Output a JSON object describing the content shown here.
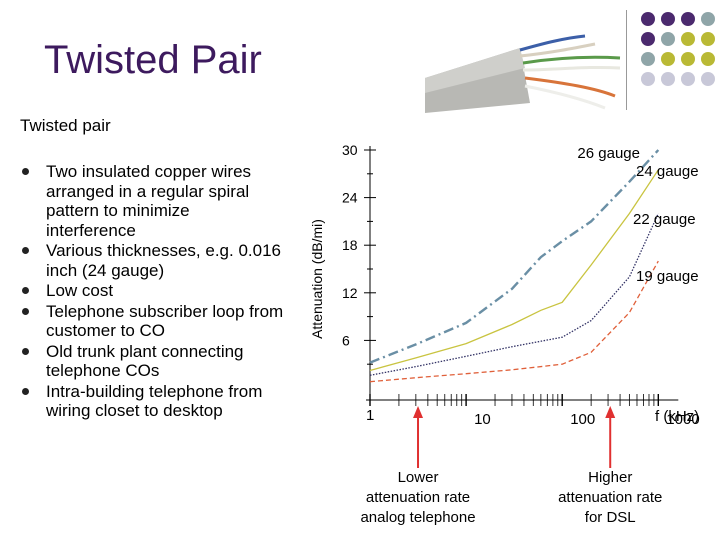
{
  "slide": {
    "title": "Twisted Pair",
    "subtitle": "Twisted pair",
    "bullets": [
      "Two insulated copper wires arranged in a regular spiral pattern to minimize interference",
      "Various thicknesses, e.g. 0.016 inch (24 gauge)",
      "Low cost",
      "Telephone subscriber loop from customer to CO",
      "Old trunk plant connecting telephone COs",
      "Intra-building telephone from wiring closet to desktop"
    ]
  },
  "decor": {
    "dot_colors": [
      "#4b2a6e",
      "#4b2a6e",
      "#4b2a6e",
      "#8fa5a8",
      "#4b2a6e",
      "#8fa5a8",
      "#b9b935",
      "#b9b935",
      "#8fa5a8",
      "#b9b935",
      "#b9b935",
      "#b9b935",
      "#c8c8d8",
      "#c8c8d8",
      "#c8c8d8",
      "#c8c8d8"
    ]
  },
  "chart_data": {
    "type": "line",
    "ylabel": "Attenuation (dB/mi)",
    "xlabel": "f (kHz)",
    "x_scale": "log",
    "xlim": [
      1,
      1000
    ],
    "ylim": [
      0,
      30
    ],
    "y_ticks": [
      "6",
      "12",
      "18",
      "24",
      "30"
    ],
    "x_ticks": [
      "1",
      "10",
      "100",
      "1000"
    ],
    "series": [
      {
        "name": "26 gauge",
        "color": "#6a8fa5",
        "dash": "dashdot",
        "points": [
          [
            1,
            3.2
          ],
          [
            3,
            5.5
          ],
          [
            10,
            8.2
          ],
          [
            30,
            12.5
          ],
          [
            60,
            16.5
          ],
          [
            100,
            18.5
          ],
          [
            200,
            21
          ],
          [
            500,
            26
          ],
          [
            1000,
            30
          ]
        ]
      },
      {
        "name": "24 gauge",
        "color": "#c9c440",
        "dash": "solid",
        "points": [
          [
            1,
            2.2
          ],
          [
            3,
            3.8
          ],
          [
            10,
            5.6
          ],
          [
            30,
            8
          ],
          [
            60,
            9.8
          ],
          [
            100,
            10.8
          ],
          [
            200,
            15.5
          ],
          [
            500,
            22
          ],
          [
            1000,
            27.5
          ]
        ]
      },
      {
        "name": "22 gauge",
        "color": "#333366",
        "dash": "dotted",
        "points": [
          [
            1,
            1.6
          ],
          [
            3,
            2.7
          ],
          [
            10,
            4
          ],
          [
            30,
            5.2
          ],
          [
            100,
            6.4
          ],
          [
            200,
            8.5
          ],
          [
            500,
            14
          ],
          [
            1000,
            22
          ]
        ]
      },
      {
        "name": "19 gauge",
        "color": "#e0603a",
        "dash": "dashed",
        "points": [
          [
            1,
            0.8
          ],
          [
            3,
            1.3
          ],
          [
            10,
            1.8
          ],
          [
            30,
            2.3
          ],
          [
            100,
            3
          ],
          [
            200,
            4.5
          ],
          [
            500,
            9.5
          ],
          [
            1000,
            16
          ]
        ]
      }
    ],
    "annotations": [
      {
        "text": [
          "Lower",
          "attenuation rate",
          "analog telephone"
        ],
        "x": 3.16
      },
      {
        "text": [
          "Higher",
          "attenuation rate",
          "for DSL"
        ],
        "x": 316
      }
    ]
  }
}
